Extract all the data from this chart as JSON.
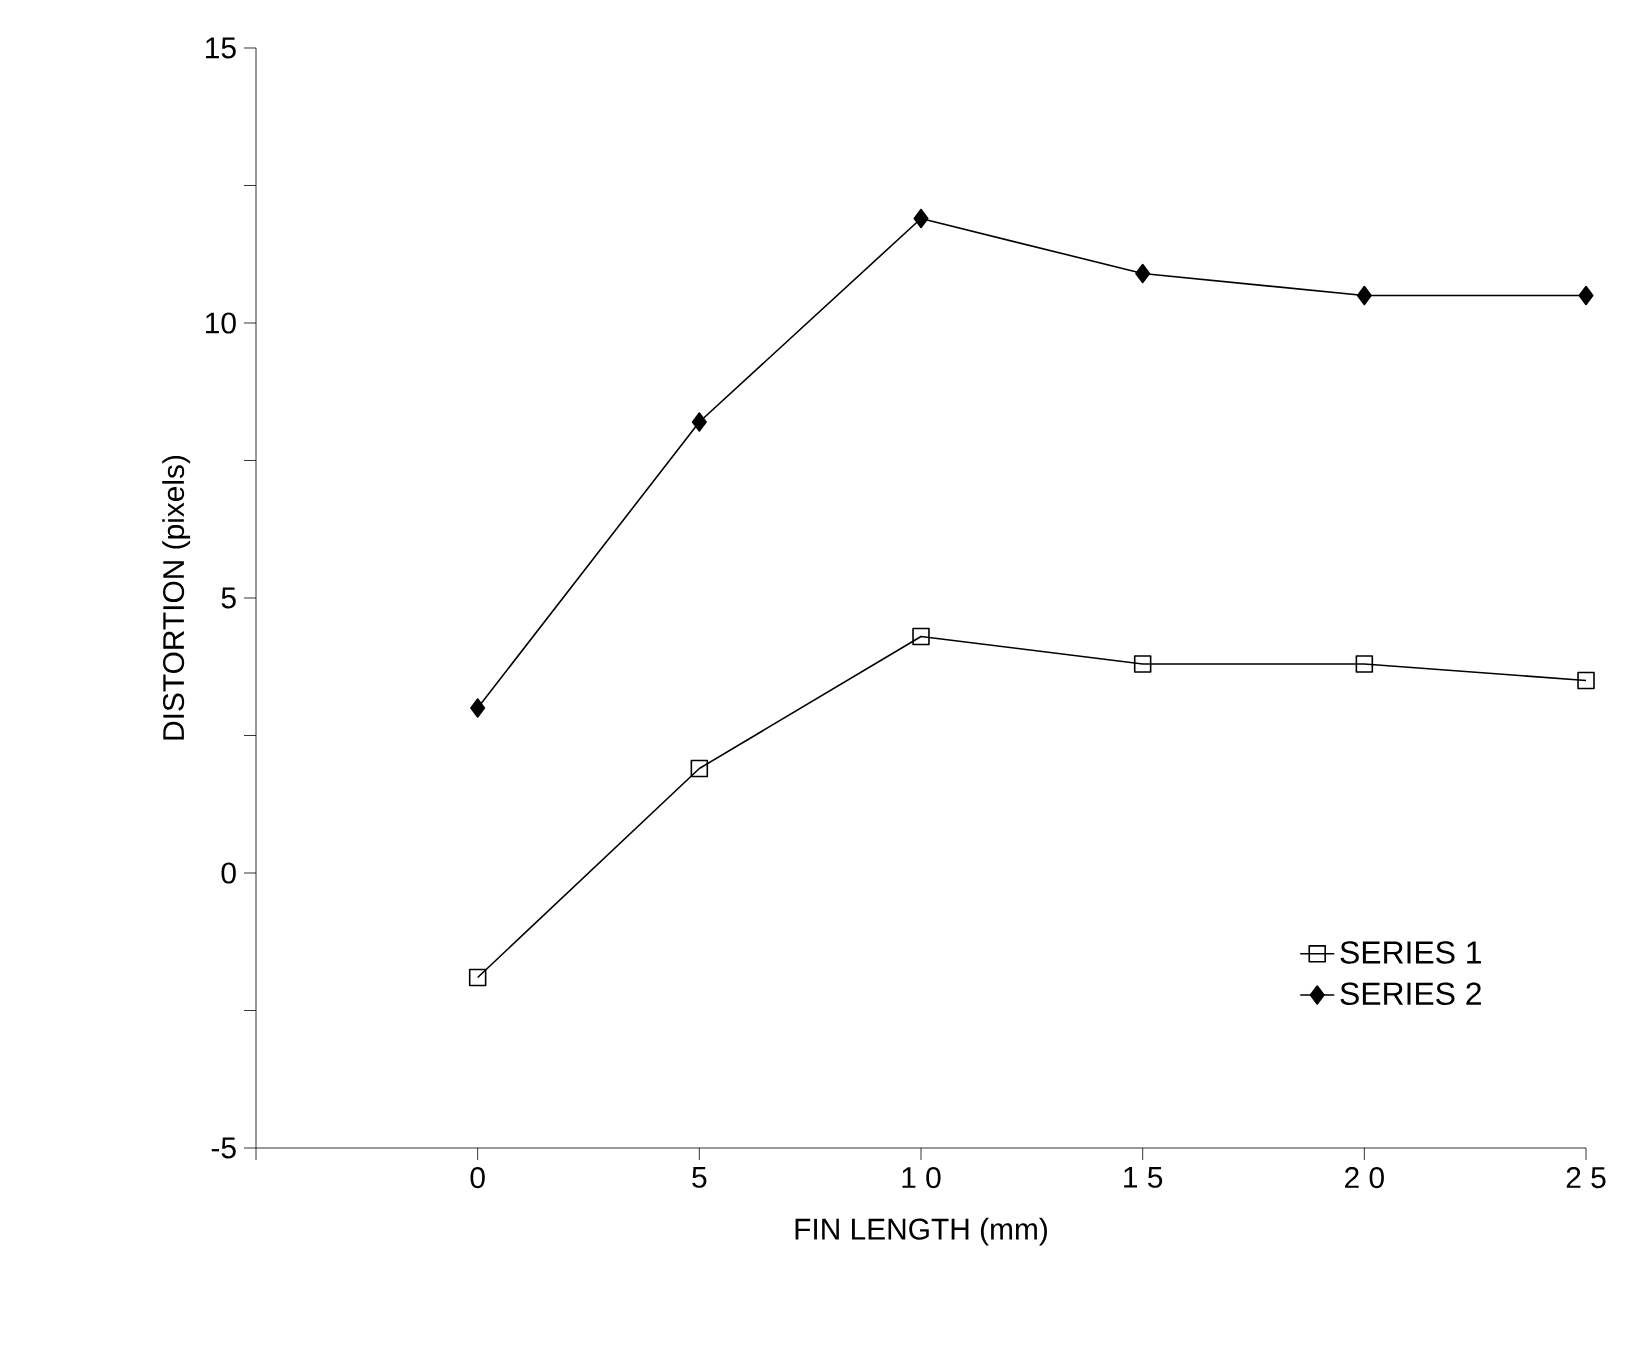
{
  "chart_data": {
    "type": "line",
    "xlabel": "FIN LENGTH (mm)",
    "ylabel": "DISTORTION  (pixels)",
    "x": [
      0,
      5,
      10,
      15,
      20,
      25
    ],
    "series": [
      {
        "name": "SERIES 1",
        "color": "#000000",
        "marker": "square",
        "values": [
          -1.9,
          1.9,
          4.3,
          3.8,
          3.8,
          3.5
        ]
      },
      {
        "name": "SERIES 2",
        "color": "#000000",
        "marker": "diamond",
        "values": [
          3.0,
          8.2,
          11.9,
          10.9,
          10.5,
          10.5
        ]
      }
    ],
    "xlim": [
      -5,
      25
    ],
    "xticks": [
      {
        "value": -5,
        "label": null
      },
      0,
      5,
      {
        "value": 10,
        "label": "1 0"
      },
      {
        "value": 15,
        "label": "1 5"
      },
      {
        "value": 20,
        "label": "2 0"
      },
      {
        "value": 25,
        "label": "2 5"
      }
    ],
    "ylim": [
      -5,
      15
    ],
    "yticks": [
      -5,
      {
        "value": -2.5,
        "label": null
      },
      0,
      {
        "value": 2.5,
        "label": null
      },
      5,
      {
        "value": 7.5,
        "label": null
      },
      10,
      {
        "value": 12.5,
        "label": null
      },
      15
    ],
    "legend": "bottom right",
    "grid": false,
    "line_style": "solid"
  }
}
